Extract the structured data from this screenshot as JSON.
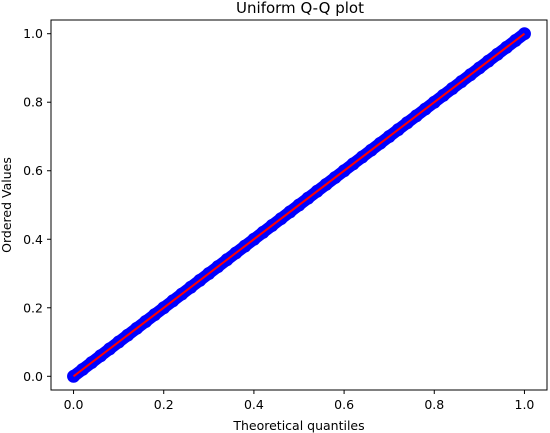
{
  "chart_data": {
    "type": "scatter",
    "title": "Uniform Q-Q plot",
    "xlabel": "Theoretical quantiles",
    "ylabel": "Ordered Values",
    "xlim": [
      -0.05,
      1.05
    ],
    "ylim": [
      -0.04,
      1.04
    ],
    "xticks": [
      0.0,
      0.2,
      0.4,
      0.6,
      0.8,
      1.0
    ],
    "xtick_labels": [
      "0.0",
      "0.2",
      "0.4",
      "0.6",
      "0.8",
      "1.0"
    ],
    "yticks": [
      0.0,
      0.2,
      0.4,
      0.6,
      0.8,
      1.0
    ],
    "ytick_labels": [
      "0.0",
      "0.2",
      "0.4",
      "0.6",
      "0.8",
      "1.0"
    ],
    "grid": false,
    "series": [
      {
        "kind": "points",
        "color": "#0000ff",
        "x": [
          0.0,
          0.02,
          0.04,
          0.06,
          0.08,
          0.1,
          0.12,
          0.14,
          0.16,
          0.18,
          0.2,
          0.22,
          0.24,
          0.26,
          0.28,
          0.3,
          0.32,
          0.34,
          0.36,
          0.38,
          0.4,
          0.42,
          0.44,
          0.46,
          0.48,
          0.5,
          0.52,
          0.54,
          0.56,
          0.58,
          0.6,
          0.62,
          0.64,
          0.66,
          0.68,
          0.7,
          0.72,
          0.74,
          0.76,
          0.78,
          0.8,
          0.82,
          0.84,
          0.86,
          0.88,
          0.9,
          0.92,
          0.94,
          0.96,
          0.98,
          1.0
        ],
        "y": [
          0.0,
          0.02,
          0.04,
          0.06,
          0.08,
          0.1,
          0.12,
          0.14,
          0.16,
          0.18,
          0.2,
          0.22,
          0.24,
          0.26,
          0.28,
          0.3,
          0.32,
          0.34,
          0.36,
          0.38,
          0.4,
          0.42,
          0.44,
          0.46,
          0.48,
          0.5,
          0.52,
          0.54,
          0.56,
          0.58,
          0.6,
          0.62,
          0.64,
          0.66,
          0.68,
          0.7,
          0.72,
          0.74,
          0.76,
          0.78,
          0.8,
          0.82,
          0.84,
          0.86,
          0.88,
          0.9,
          0.92,
          0.94,
          0.96,
          0.98,
          1.0
        ]
      },
      {
        "kind": "line",
        "color": "#ff0000",
        "x": [
          0.0,
          1.0
        ],
        "y": [
          0.0,
          1.0
        ]
      }
    ]
  },
  "colors": {
    "points": "#0000ff",
    "fit_line": "#ff0000",
    "axes": "#000000",
    "background": "#ffffff"
  }
}
